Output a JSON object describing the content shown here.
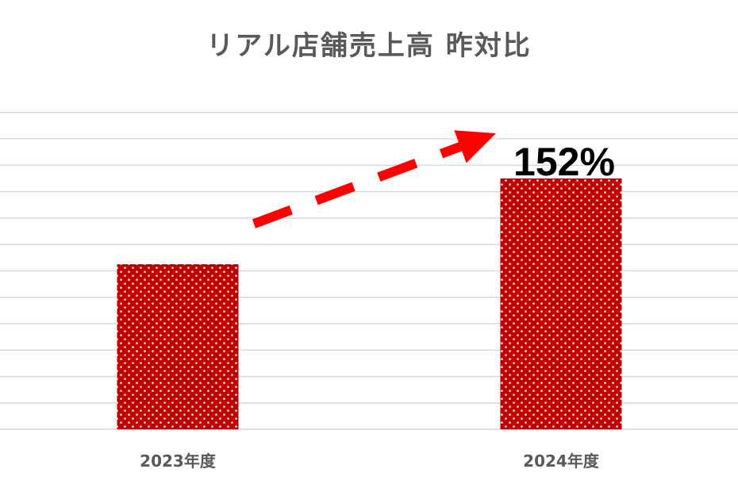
{
  "chart_data": {
    "type": "bar",
    "title": "リアル店舗売上高 昨対比",
    "xlabel": "",
    "ylabel": "",
    "categories": [
      "2023年度",
      "2024年度"
    ],
    "values": [
      100,
      152
    ],
    "ylim": [
      0,
      200
    ],
    "y_tick_step": 16,
    "grid": true,
    "legend": "none",
    "annotations": [
      {
        "type": "data-label",
        "category": "2024年度",
        "text": "152%"
      },
      {
        "type": "dashed-arrow",
        "from": "2023年度",
        "to": "2024年度"
      }
    ],
    "colors": {
      "bar": "#c00000",
      "dot": "#ffffff",
      "arrow": "#ff0000",
      "grid": "#d9d9d9",
      "text": "#595959"
    }
  }
}
